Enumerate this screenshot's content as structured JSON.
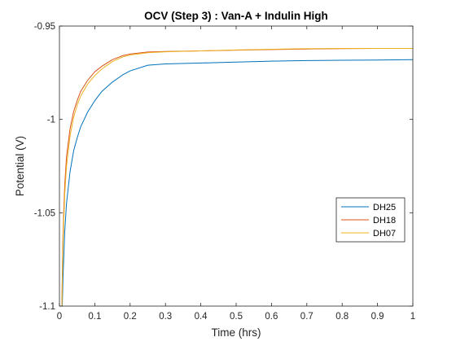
{
  "chart_data": {
    "type": "line",
    "title": "OCV (Step 3) : Van-A + Indulin High",
    "xlabel": "Time (hrs)",
    "ylabel": "Potential (V)",
    "xlim": [
      0,
      1
    ],
    "ylim": [
      -1.1,
      -0.95
    ],
    "xticks": [
      0,
      0.1,
      0.2,
      0.3,
      0.4,
      0.5,
      0.6,
      0.7,
      0.8,
      0.9,
      1
    ],
    "xtick_labels": [
      "0",
      "0.1",
      "0.2",
      "0.3",
      "0.4",
      "0.5",
      "0.6",
      "0.7",
      "0.8",
      "0.9",
      "1"
    ],
    "yticks": [
      -1.1,
      -1.05,
      -1,
      -0.95
    ],
    "ytick_labels": [
      "-1.1",
      "-1.05",
      "-1",
      "-0.95"
    ],
    "grid": false,
    "legend_position": "right",
    "series": [
      {
        "name": "DH25",
        "color": "#0072BD",
        "x": [
          0.008,
          0.01,
          0.015,
          0.02,
          0.03,
          0.04,
          0.05,
          0.06,
          0.08,
          0.1,
          0.12,
          0.15,
          0.18,
          0.2,
          0.25,
          0.3,
          0.4,
          0.5,
          0.6,
          0.7,
          0.8,
          0.9,
          1.0
        ],
        "y": [
          -1.1,
          -1.085,
          -1.06,
          -1.045,
          -1.028,
          -1.017,
          -1.01,
          -1.004,
          -0.996,
          -0.99,
          -0.985,
          -0.98,
          -0.976,
          -0.974,
          -0.971,
          -0.9703,
          -0.9698,
          -0.9693,
          -0.9688,
          -0.9685,
          -0.9683,
          -0.9682,
          -0.968
        ]
      },
      {
        "name": "DH18",
        "color": "#D95319",
        "x": [
          0.007,
          0.009,
          0.012,
          0.015,
          0.02,
          0.03,
          0.04,
          0.05,
          0.06,
          0.08,
          0.1,
          0.12,
          0.15,
          0.18,
          0.2,
          0.25,
          0.3,
          0.4,
          0.5,
          0.6,
          0.7,
          0.8,
          0.9,
          1.0
        ],
        "y": [
          -1.1,
          -1.07,
          -1.05,
          -1.035,
          -1.02,
          -1.005,
          -0.996,
          -0.99,
          -0.985,
          -0.979,
          -0.9745,
          -0.9715,
          -0.968,
          -0.9658,
          -0.965,
          -0.9639,
          -0.9636,
          -0.9633,
          -0.9629,
          -0.9626,
          -0.9623,
          -0.9621,
          -0.962,
          -0.962
        ]
      },
      {
        "name": "DH07",
        "color": "#EDB120",
        "x": [
          0.007,
          0.009,
          0.012,
          0.015,
          0.02,
          0.03,
          0.04,
          0.05,
          0.06,
          0.08,
          0.1,
          0.12,
          0.15,
          0.18,
          0.2,
          0.25,
          0.3,
          0.4,
          0.5,
          0.6,
          0.7,
          0.8,
          0.9,
          1.0
        ],
        "y": [
          -1.1,
          -1.075,
          -1.055,
          -1.04,
          -1.025,
          -1.009,
          -0.999,
          -0.9925,
          -0.9875,
          -0.981,
          -0.9765,
          -0.973,
          -0.969,
          -0.9665,
          -0.9655,
          -0.9643,
          -0.9638,
          -0.9633,
          -0.9628,
          -0.9624,
          -0.9621,
          -0.962,
          -0.962,
          -0.962
        ]
      }
    ]
  }
}
